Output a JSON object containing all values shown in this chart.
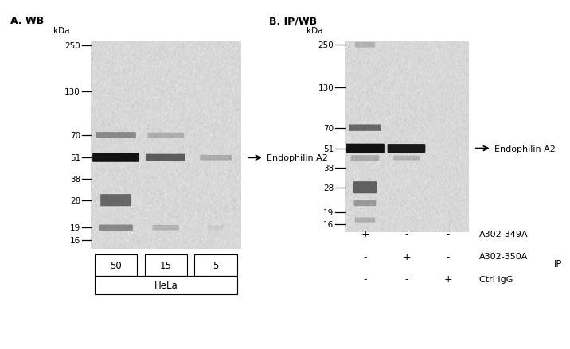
{
  "panel_A_label": "A. WB",
  "panel_B_label": "B. IP/WB",
  "kda_label": "kDa",
  "mw_markers": [
    250,
    130,
    70,
    51,
    38,
    28,
    19,
    16
  ],
  "gel_bg": "#dddbd8",
  "outside_bg": "#ffffff",
  "lanes_A": [
    "50",
    "15",
    "5"
  ],
  "cell_line_A": "HeLa",
  "annotation_A": "← Endophilin A2",
  "annotation_B": "← Endophilin A2",
  "bands_A": [
    [
      0,
      70,
      0.38,
      0.78,
      0.013
    ],
    [
      0,
      51,
      0.96,
      0.9,
      0.02
    ],
    [
      0,
      28,
      0.55,
      0.58,
      0.03
    ],
    [
      0,
      19,
      0.38,
      0.65,
      0.012
    ],
    [
      1,
      70,
      0.2,
      0.7,
      0.01
    ],
    [
      1,
      51,
      0.6,
      0.75,
      0.016
    ],
    [
      1,
      19,
      0.18,
      0.5,
      0.01
    ],
    [
      2,
      51,
      0.22,
      0.6,
      0.01
    ],
    [
      2,
      19,
      0.06,
      0.3,
      0.008
    ]
  ],
  "bands_B": [
    [
      0,
      250,
      0.18,
      0.45,
      0.01
    ],
    [
      0,
      70,
      0.55,
      0.75,
      0.014
    ],
    [
      0,
      51,
      0.97,
      0.9,
      0.022
    ],
    [
      0,
      44,
      0.22,
      0.65,
      0.01
    ],
    [
      0,
      28,
      0.58,
      0.52,
      0.03
    ],
    [
      0,
      22,
      0.3,
      0.5,
      0.012
    ],
    [
      0,
      17,
      0.2,
      0.45,
      0.009
    ],
    [
      1,
      51,
      0.93,
      0.88,
      0.02
    ],
    [
      1,
      44,
      0.18,
      0.6,
      0.008
    ]
  ],
  "rows_B": [
    [
      "+",
      "-",
      "-",
      "A302-349A"
    ],
    [
      "-",
      "+",
      "-",
      "A302-350A"
    ],
    [
      "-",
      "-",
      "+",
      "Ctrl IgG"
    ]
  ],
  "ip_label": "IP"
}
